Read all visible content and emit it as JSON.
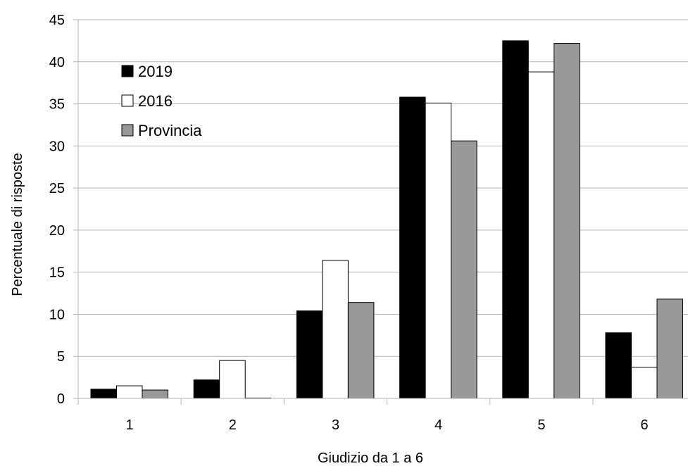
{
  "chart_data": {
    "type": "bar",
    "title": "",
    "xlabel": "Giudizio da 1 a 6",
    "ylabel": "Percentuale di risposte",
    "categories": [
      "1",
      "2",
      "3",
      "4",
      "5",
      "6"
    ],
    "ylim": [
      0,
      45
    ],
    "yticks": [
      "0",
      "5",
      "10",
      "15",
      "20",
      "25",
      "30",
      "35",
      "40",
      "45"
    ],
    "grid": true,
    "legend_position": "top-left",
    "series": [
      {
        "name": "2019",
        "color": "#000000",
        "values": [
          1.1,
          2.2,
          10.4,
          35.8,
          42.5,
          7.8
        ]
      },
      {
        "name": "2016",
        "color": "#ffffff",
        "values": [
          1.5,
          4.5,
          16.4,
          35.1,
          38.8,
          3.7
        ]
      },
      {
        "name": "Provincia",
        "color": "#999999",
        "values": [
          1.0,
          0.05,
          11.4,
          30.6,
          42.2,
          11.8
        ]
      }
    ]
  }
}
